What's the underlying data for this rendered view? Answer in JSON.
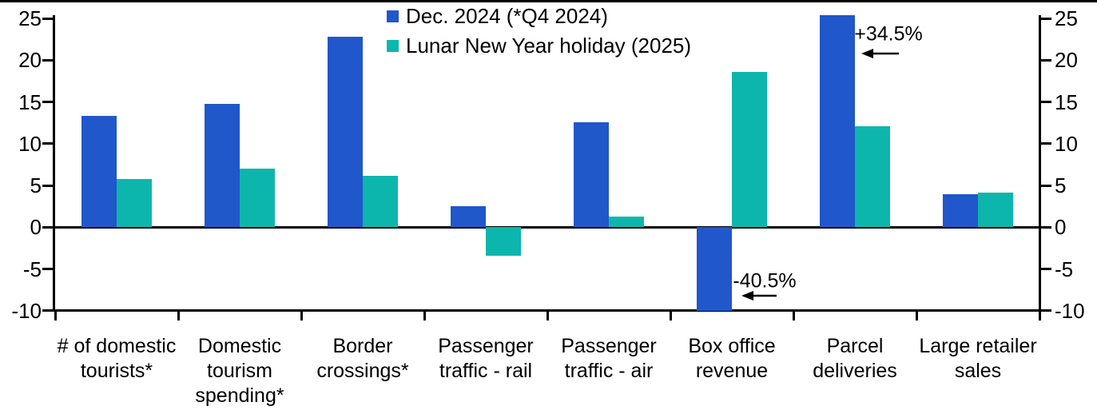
{
  "chart_data": {
    "type": "bar",
    "title": "",
    "xlabel": "",
    "ylabel": "",
    "ylim": [
      -10,
      25
    ],
    "yticks": [
      25,
      20,
      15,
      10,
      5,
      0,
      -5,
      -10
    ],
    "y_axis_sides": [
      "left",
      "right"
    ],
    "grid": false,
    "legend_position": "top-center",
    "categories": [
      "# of domestic tourists*",
      "Domestic tourism spending*",
      "Border crossings*",
      "Passenger traffic - rail",
      "Passenger traffic - air",
      "Box office revenue",
      "Parcel deliveries",
      "Large retailer sales"
    ],
    "category_label_lines": [
      [
        "# of domestic",
        "tourists*"
      ],
      [
        "Domestic",
        "tourism",
        "spending*"
      ],
      [
        "Border",
        "crossings*"
      ],
      [
        "Passenger",
        "traffic - rail"
      ],
      [
        "Passenger",
        "traffic - air"
      ],
      [
        "Box office",
        "revenue"
      ],
      [
        "Parcel",
        "deliveries"
      ],
      [
        "Large retailer",
        "sales"
      ]
    ],
    "series": [
      {
        "name": "Dec. 2024 (*Q4 2024)",
        "color": "#2057ca",
        "values": [
          13.3,
          14.8,
          22.8,
          2.5,
          12.6,
          -40.5,
          34.5,
          4.0
        ],
        "display_values": [
          13.3,
          14.8,
          22.8,
          2.5,
          12.6,
          -10,
          25.4,
          4.0
        ]
      },
      {
        "name": "Lunar New Year holiday (2025)",
        "color": "#0db6ac",
        "values": [
          5.8,
          7.0,
          6.2,
          -3.4,
          1.3,
          18.6,
          12.1,
          4.1
        ],
        "display_values": [
          5.8,
          7.0,
          6.2,
          -3.4,
          1.3,
          18.6,
          12.1,
          4.1
        ]
      }
    ],
    "annotations": [
      {
        "text": "-40.5%",
        "target_category": "Box office revenue",
        "target_series": "Dec. 2024 (*Q4 2024)",
        "arrow_direction": "left",
        "text_cx": 957,
        "text_cy": 352,
        "arrow_tip_x": 928,
        "arrow_cy": 370,
        "arrow_len": 44
      },
      {
        "text": "+34.5%",
        "target_category": "Parcel deliveries",
        "target_series": "Dec. 2024 (*Q4 2024)",
        "arrow_direction": "left",
        "text_cx": 1112,
        "text_cy": 43,
        "arrow_tip_x": 1078,
        "arrow_cy": 67,
        "arrow_len": 47
      }
    ],
    "axis_color": "#000000"
  }
}
